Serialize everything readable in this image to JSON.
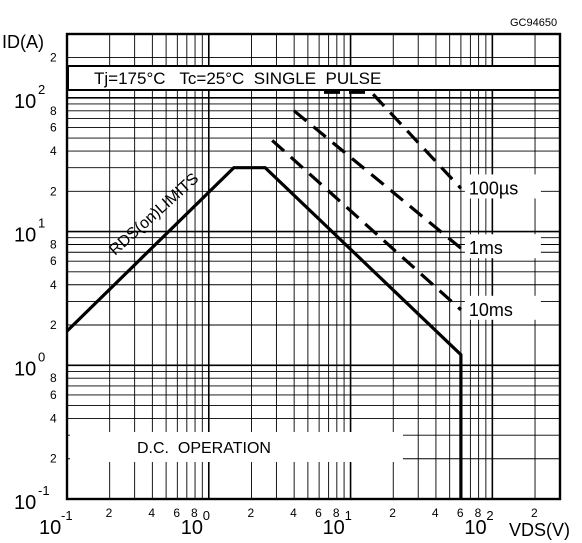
{
  "chart_data": {
    "type": "line",
    "figure_code": "GC94650",
    "ylabel": "ID(A)",
    "xlabel": "VDS(V)",
    "x_scale": "log",
    "y_scale": "log",
    "xlim": [
      0.1,
      300
    ],
    "ylim": [
      0.1,
      300
    ],
    "grid": true,
    "conditions": "Tj=175°C   Tc=25°C  SINGLE  PULSE",
    "dc_label": "D.C.  OPERATION",
    "rds_label": "RDS(on)LIMITS",
    "x_major_ticks": [
      {
        "value": 0.1,
        "base": "10",
        "exp": "-1"
      },
      {
        "value": 1,
        "base": "10",
        "exp": "0"
      },
      {
        "value": 10,
        "base": "10",
        "exp": "1"
      },
      {
        "value": 100,
        "base": "10",
        "exp": "2"
      }
    ],
    "y_major_ticks": [
      {
        "value": 0.1,
        "base": "10",
        "exp": "-1"
      },
      {
        "value": 1,
        "base": "10",
        "exp": "0"
      },
      {
        "value": 10,
        "base": "10",
        "exp": "1"
      },
      {
        "value": 100,
        "base": "10",
        "exp": "2"
      }
    ],
    "minor_tick_labels": [
      "2",
      "4",
      "6",
      "8"
    ],
    "series": [
      {
        "name": "D.C. OPERATION",
        "style": "solid",
        "x": [
          0.1,
          1.5,
          2.5,
          60,
          60
        ],
        "y": [
          1.8,
          30,
          30,
          1.2,
          0.1
        ]
      },
      {
        "name": "100µs",
        "style": "dashed",
        "x": [
          6.5,
          11,
          14,
          60
        ],
        "y": [
          110,
          110,
          110,
          21
        ]
      },
      {
        "name": "1ms",
        "style": "dashed",
        "x": [
          4.0,
          60
        ],
        "y": [
          80,
          7.5
        ]
      },
      {
        "name": "10ms",
        "style": "dashed",
        "x": [
          2.8,
          60
        ],
        "y": [
          48,
          2.6
        ]
      }
    ],
    "annotations": [
      "100µs",
      "1ms",
      "10ms"
    ]
  }
}
